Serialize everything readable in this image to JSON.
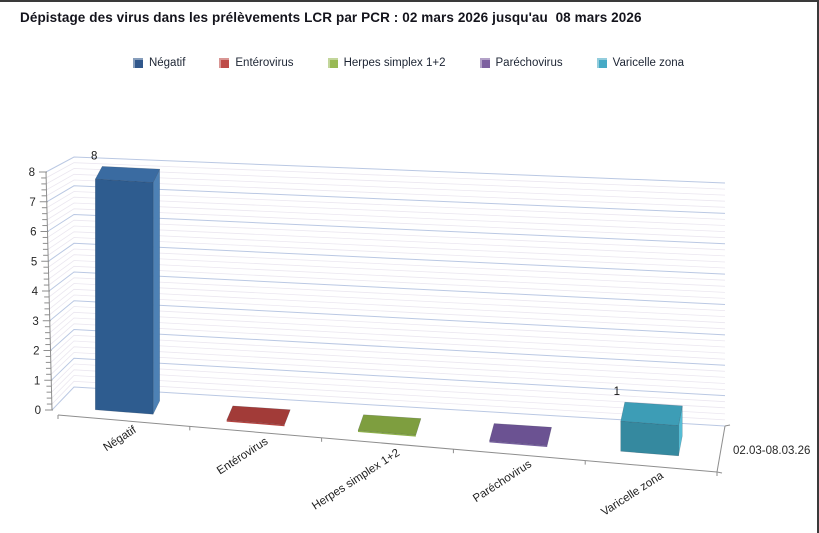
{
  "title": "Dépistage des virus dans les prélèvements LCR par PCR : 02 mars 2026 jusqu'au  08 mars 2026",
  "chart_data": {
    "type": "bar",
    "style": "3d-column",
    "categories": [
      "Négatif",
      "Entérovirus",
      "Herpes simplex 1+2",
      "Paréchovirus",
      "Varicelle zona"
    ],
    "values": [
      8,
      0,
      0,
      0,
      1
    ],
    "series_label": "02.03-08.03.26",
    "title": "Dépistage des virus dans les prélèvements LCR par PCR : 02 mars 2026 jusqu'au  08 mars 2026",
    "xlabel": "",
    "ylabel": "",
    "ylim": [
      0,
      8
    ],
    "y_major_unit": 1,
    "y_minor_unit": 0.2,
    "grid": true,
    "legend_position": "top",
    "value_labels": {
      "show_nonzero_only": true,
      "shown": {
        "Négatif": 8,
        "Varicelle zona": 1
      }
    },
    "point_colors": [
      {
        "label": "Négatif",
        "legend": "#31588C",
        "front": "#2E5C8F",
        "top": "#3A6BA1",
        "side": "#4D81B5"
      },
      {
        "label": "Entérovirus",
        "legend": "#BE4B48",
        "front": "#B5433F",
        "top": "#A23B38",
        "side": "#C9615E"
      },
      {
        "label": "Herpes simplex 1+2",
        "legend": "#98B954",
        "front": "#8DB04A",
        "top": "#7E9E3F",
        "side": "#A9C86B"
      },
      {
        "label": "Paréchovirus",
        "legend": "#7D60A0",
        "front": "#77609F",
        "top": "#6B5292",
        "side": "#8F7AB5"
      },
      {
        "label": "Varicelle zona",
        "legend": "#46AAC5",
        "front": "#35899F",
        "top": "#3D9DB6",
        "side": "#55BCD4"
      }
    ],
    "axis_text_color": "#262626",
    "axis_line_color": "#8e8e8e",
    "gridline_major_color": "#bac8e3",
    "gridline_minor_color": "#ebe7f0",
    "frame_border_color": "#3a3a3a"
  }
}
